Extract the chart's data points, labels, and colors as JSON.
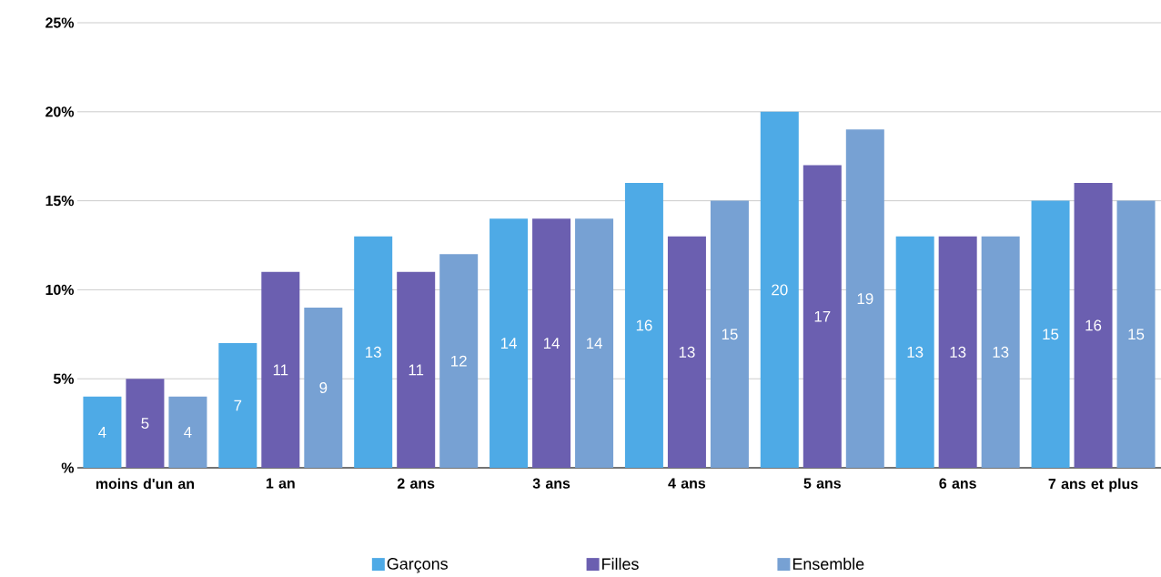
{
  "chart_data": {
    "type": "bar",
    "categories": [
      "moins d'un an",
      "1 an",
      "2 ans",
      "3 ans",
      "4 ans",
      "5 ans",
      "6 ans",
      "7 ans et plus"
    ],
    "series": [
      {
        "name": "Garçons",
        "color": "#4eaae6",
        "values": [
          4,
          7,
          13,
          14,
          16,
          20,
          13,
          15
        ]
      },
      {
        "name": "Filles",
        "color": "#6b5fb0",
        "values": [
          5,
          11,
          11,
          14,
          13,
          17,
          13,
          16
        ]
      },
      {
        "name": "Ensemble",
        "color": "#77a1d3",
        "values": [
          4,
          9,
          12,
          14,
          15,
          19,
          13,
          15
        ]
      }
    ],
    "ylim": [
      0,
      25
    ],
    "yticks": [
      {
        "value": 0,
        "label": "%"
      },
      {
        "value": 5,
        "label": "5%"
      },
      {
        "value": 10,
        "label": "10%"
      },
      {
        "value": 15,
        "label": "15%"
      },
      {
        "value": 20,
        "label": "20%"
      },
      {
        "value": 25,
        "label": "25%"
      }
    ],
    "grid": "y",
    "legend": "bottom",
    "data_labels": true
  }
}
